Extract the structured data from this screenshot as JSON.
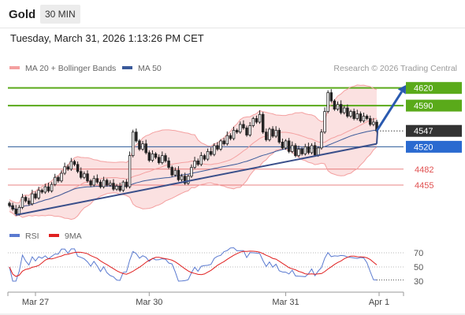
{
  "header": {
    "instrument": "Gold",
    "timeframe": "30 MIN"
  },
  "datetime": "Tuesday, March 31, 2026 1:13:26 PM CET",
  "colors": {
    "bollinger": "#f4a0a0",
    "ma50": "#3a5a9a",
    "resistance": "#5aaa1a",
    "support_blue": "#2a5a9a",
    "support_red": "#e05050",
    "up_candle": "#ffffff",
    "down_candle": "#222222",
    "trend": "#3a4f8a",
    "rsi": "#5a7ad0",
    "rsi_ma": "#e02020"
  },
  "chart_data": [
    {
      "type": "candlestick",
      "legend": [
        {
          "name": "MA 20 + Bollinger Bands",
          "color": "#f4a0a0"
        },
        {
          "name": "MA 50",
          "color": "#3a5a9a"
        }
      ],
      "legend_placement": "top-left",
      "credit": "Research © 2026 Trading Central",
      "y_range": [
        4392,
        4641
      ],
      "x_labels": [
        "Mar 27",
        "Mar 30",
        "Mar 31",
        "Apr 1"
      ],
      "levels": [
        {
          "label": "4620",
          "value": 4620,
          "style": "resistance"
        },
        {
          "label": "4590",
          "value": 4590,
          "style": "resistance"
        },
        {
          "label": "4547",
          "value": 4547,
          "style": "current"
        },
        {
          "label": "4520",
          "value": 4520,
          "style": "support"
        },
        {
          "label": "4482",
          "value": 4482,
          "style": "minor"
        },
        {
          "label": "4455",
          "value": 4455,
          "style": "minor"
        }
      ],
      "close": [
        4420,
        4414,
        4406,
        4417,
        4434,
        4428,
        4423,
        4440,
        4433,
        4446,
        4443,
        4452,
        4445,
        4456,
        4468,
        4462,
        4475,
        4486,
        4482,
        4495,
        4490,
        4478,
        4468,
        4474,
        4462,
        4455,
        4466,
        4460,
        4452,
        4463,
        4455,
        4458,
        4448,
        4453,
        4446,
        4460,
        4452,
        4505,
        4545,
        4530,
        4516,
        4525,
        4510,
        4497,
        4508,
        4502,
        4493,
        4505,
        4496,
        4485,
        4472,
        4480,
        4464,
        4470,
        4458,
        4470,
        4485,
        4496,
        4490,
        4505,
        4499,
        4512,
        4507,
        4522,
        4516,
        4530,
        4525,
        4539,
        4534,
        4548,
        4545,
        4558,
        4552,
        4540,
        4556,
        4568,
        4562,
        4575,
        4545,
        4532,
        4550,
        4538,
        4548,
        4528,
        4518,
        4530,
        4512,
        4522,
        4505,
        4516,
        4508,
        4520,
        4510,
        4522,
        4506,
        4518,
        4545,
        4580,
        4612,
        4598,
        4584,
        4592,
        4578,
        4586,
        4572,
        4580,
        4568,
        4576,
        4564,
        4572,
        4568,
        4558,
        4562,
        4547
      ],
      "trend_line": {
        "from": {
          "index": 2,
          "value": 4404
        },
        "to": {
          "index": 113,
          "value": 4525
        }
      },
      "projection": {
        "from": {
          "index": 113,
          "value": 4547
        },
        "to": {
          "index": 122,
          "value": 4625
        }
      }
    },
    {
      "type": "line",
      "legend": [
        {
          "name": "RSI",
          "color": "#5a7ad0"
        },
        {
          "name": "9MA",
          "color": "#e02020"
        }
      ],
      "legend_placement": "top-left",
      "y_range": [
        20,
        80
      ],
      "y_ticks": [
        30,
        50,
        70
      ]
    }
  ]
}
